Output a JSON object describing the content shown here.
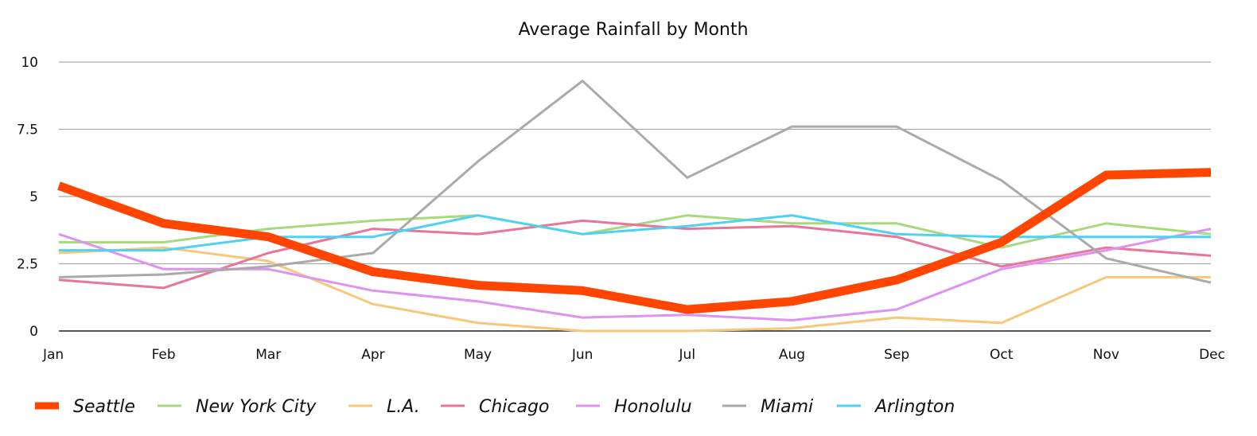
{
  "chart_data": {
    "type": "line",
    "title": "Average Rainfall by Month",
    "xlabel": "",
    "ylabel": "",
    "categories": [
      "Jan",
      "Feb",
      "Mar",
      "Apr",
      "May",
      "Jun",
      "Jul",
      "Aug",
      "Sep",
      "Oct",
      "Nov",
      "Dec"
    ],
    "ylim": [
      0,
      10
    ],
    "yticks": [
      0,
      2.5,
      5,
      7.5,
      10
    ],
    "ytick_labels": [
      "0",
      "2.5",
      "5",
      "7.5",
      "10"
    ],
    "grid": true,
    "legend_position": "bottom",
    "series": [
      {
        "name": "Seattle",
        "color": "#ff4500",
        "emphasis": true,
        "values": [
          5.4,
          4.0,
          3.5,
          2.2,
          1.7,
          1.5,
          0.8,
          1.1,
          1.9,
          3.3,
          5.8,
          5.9
        ]
      },
      {
        "name": "New York City",
        "color": "#a8d97f",
        "values": [
          3.3,
          3.3,
          3.8,
          4.1,
          4.3,
          3.6,
          4.3,
          4.0,
          4.0,
          3.1,
          4.0,
          3.6
        ]
      },
      {
        "name": "L.A.",
        "color": "#f7c77a",
        "values": [
          2.9,
          3.1,
          2.6,
          1.0,
          0.3,
          0.0,
          0.0,
          0.1,
          0.5,
          0.3,
          2.0,
          2.0
        ]
      },
      {
        "name": "Chicago",
        "color": "#e8759a",
        "values": [
          1.9,
          1.6,
          2.9,
          3.8,
          3.6,
          4.1,
          3.8,
          3.9,
          3.5,
          2.4,
          3.1,
          2.8
        ]
      },
      {
        "name": "Honolulu",
        "color": "#de92f2",
        "values": [
          3.6,
          2.3,
          2.3,
          1.5,
          1.1,
          0.5,
          0.6,
          0.4,
          0.8,
          2.3,
          3.0,
          3.8
        ]
      },
      {
        "name": "Miami",
        "color": "#aaaaaa",
        "values": [
          2.0,
          2.1,
          2.4,
          2.9,
          6.3,
          9.3,
          5.7,
          7.6,
          7.6,
          5.6,
          2.7,
          1.8
        ]
      },
      {
        "name": "Arlington",
        "color": "#4fd2f2",
        "values": [
          3.0,
          3.0,
          3.5,
          3.5,
          4.3,
          3.6,
          3.9,
          4.3,
          3.6,
          3.5,
          3.5,
          3.5
        ]
      }
    ]
  }
}
